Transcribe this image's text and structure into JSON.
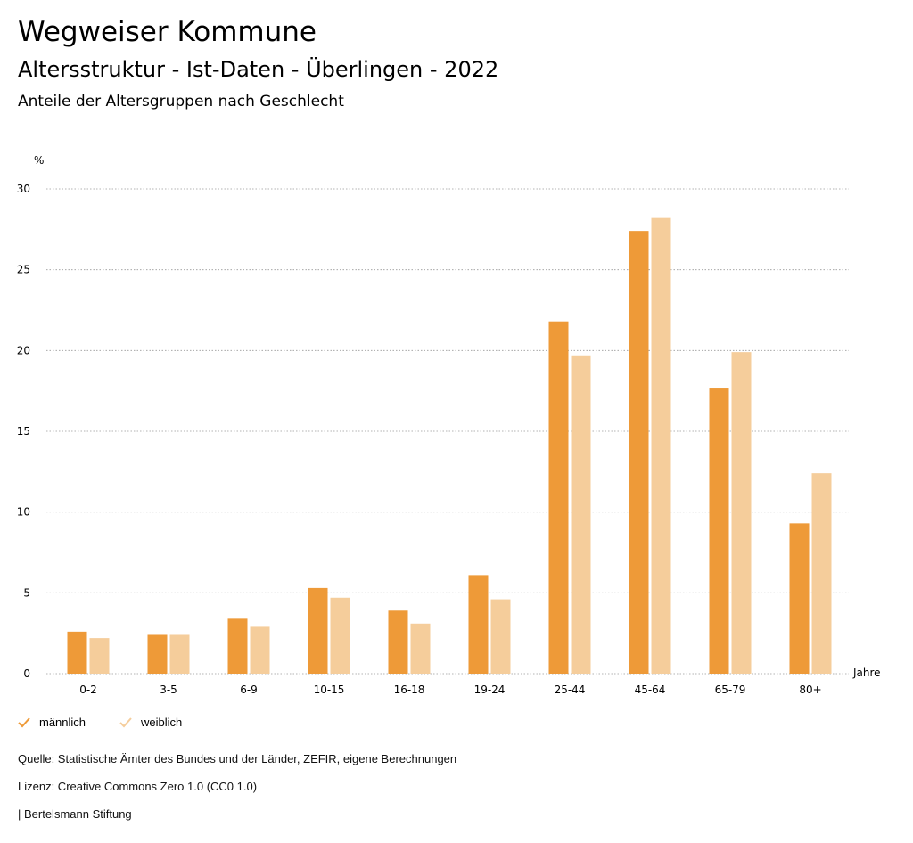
{
  "header": {
    "title": "Wegweiser Kommune",
    "subtitle": "Altersstruktur - Ist-Daten - Überlingen - 2022",
    "subsubtitle": "Anteile der Altersgruppen nach Geschlecht"
  },
  "chart_data": {
    "type": "bar",
    "categories": [
      "0-2",
      "3-5",
      "6-9",
      "10-15",
      "16-18",
      "19-24",
      "25-44",
      "45-64",
      "65-79",
      "80+"
    ],
    "series": [
      {
        "name": "männlich",
        "color": "#ee9a38",
        "values": [
          2.6,
          2.4,
          3.4,
          5.3,
          3.9,
          6.1,
          21.8,
          27.4,
          17.7,
          9.3
        ]
      },
      {
        "name": "weiblich",
        "color": "#f5cd9b",
        "values": [
          2.2,
          2.4,
          2.9,
          4.7,
          3.1,
          4.6,
          19.7,
          28.2,
          19.9,
          12.4
        ]
      }
    ],
    "ylabel": "%",
    "xlabel": "Jahre",
    "ylim": [
      0,
      30
    ],
    "yticks": [
      0,
      5,
      10,
      15,
      20,
      25,
      30
    ],
    "grid": true,
    "legend": "bottom-left"
  },
  "footer": {
    "source": "Quelle: Statistische Ämter des Bundes und der Länder, ZEFIR, eigene Berechnungen",
    "license": "Lizenz: Creative Commons Zero 1.0 (CC0 1.0)",
    "brand": "| Bertelsmann Stiftung"
  }
}
